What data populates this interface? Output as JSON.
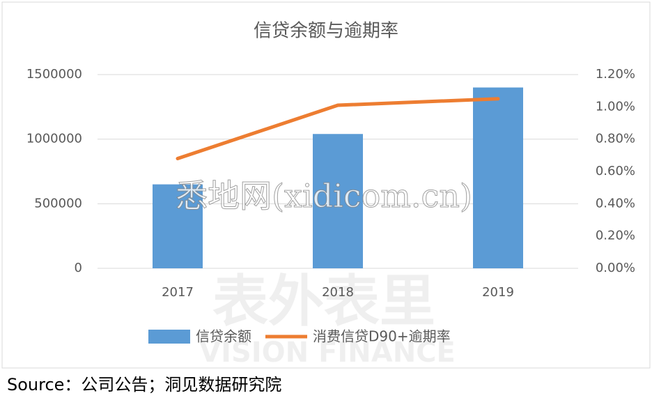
{
  "chart_data": {
    "type": "bar",
    "title": "信贷余额与逾期率",
    "categories": [
      "2017",
      "2018",
      "2019"
    ],
    "series": [
      {
        "name": "信贷余额",
        "type": "bar",
        "color": "#5b9bd5",
        "values": [
          650000,
          1040000,
          1400000
        ]
      },
      {
        "name": "消费信贷D90+逾期率",
        "type": "line",
        "axis": "y2",
        "color": "#ed7d31",
        "values": [
          0.68,
          1.01,
          1.05
        ]
      }
    ],
    "ylim": [
      0,
      1500000
    ],
    "yticks": [
      0,
      500000,
      1000000,
      1500000
    ],
    "y2lim": [
      0,
      1.2
    ],
    "y2ticks": [
      {
        "value": 0,
        "label": "0.00%"
      },
      {
        "value": 0.2,
        "label": "0.20%"
      },
      {
        "value": 0.4,
        "label": "0.40%"
      },
      {
        "value": 0.6,
        "label": "0.60%"
      },
      {
        "value": 0.8,
        "label": "0.80%"
      },
      {
        "value": 1.0,
        "label": "1.00%"
      },
      {
        "value": 1.2,
        "label": "1.20%"
      }
    ],
    "grid": true,
    "legend": "bottom",
    "watermark": "悉地网(xidicom.cn)",
    "watermark_logo": "表外表里",
    "watermark_logo_sub": "VISION FINANCE",
    "source": "Source：公司公告；洞见数据研究院"
  }
}
